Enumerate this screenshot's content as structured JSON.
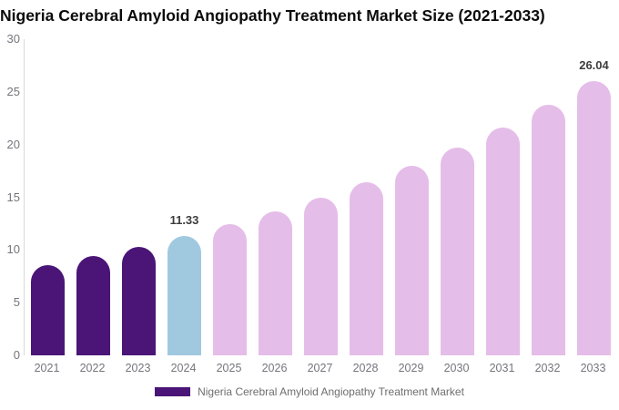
{
  "title": "Nigeria Cerebral Amyloid Angiopathy Treatment Market Size (2021-2033)",
  "legend": {
    "label": "Nigeria Cerebral Amyloid Angiopathy Treatment Market",
    "swatch_color": "#4a1577"
  },
  "chart_data": {
    "type": "bar",
    "title": "Nigeria Cerebral Amyloid Angiopathy Treatment Market Size (2021-2033)",
    "categories": [
      "2021",
      "2022",
      "2023",
      "2024",
      "2025",
      "2026",
      "2027",
      "2028",
      "2029",
      "2030",
      "2031",
      "2032",
      "2033"
    ],
    "values": [
      8.59,
      9.42,
      10.33,
      11.33,
      12.43,
      13.63,
      14.95,
      16.4,
      17.99,
      19.73,
      21.64,
      23.74,
      26.04
    ],
    "data_labels": [
      "",
      "",
      "",
      "11.33",
      "",
      "",
      "",
      "",
      "",
      "",
      "",
      "",
      "26.04"
    ],
    "bar_colors": [
      "#4a1577",
      "#4a1577",
      "#4a1577",
      "#a0c9e0",
      "#e5bde9",
      "#e5bde9",
      "#e5bde9",
      "#e5bde9",
      "#e5bde9",
      "#e5bde9",
      "#e5bde9",
      "#e5bde9",
      "#e5bde9"
    ],
    "segment_colors": {
      "historical": "#4a1577",
      "base_year": "#a0c9e0",
      "forecast": "#e5bde9"
    },
    "xlabel": "",
    "ylabel": "",
    "y_ticks": [
      0,
      5,
      10,
      15,
      20,
      25,
      30
    ],
    "ylim": [
      0,
      30
    ],
    "grid": false,
    "legend_position": "bottom",
    "axis_text_color": "#75757d",
    "data_label_color": "#3d3d3d"
  }
}
